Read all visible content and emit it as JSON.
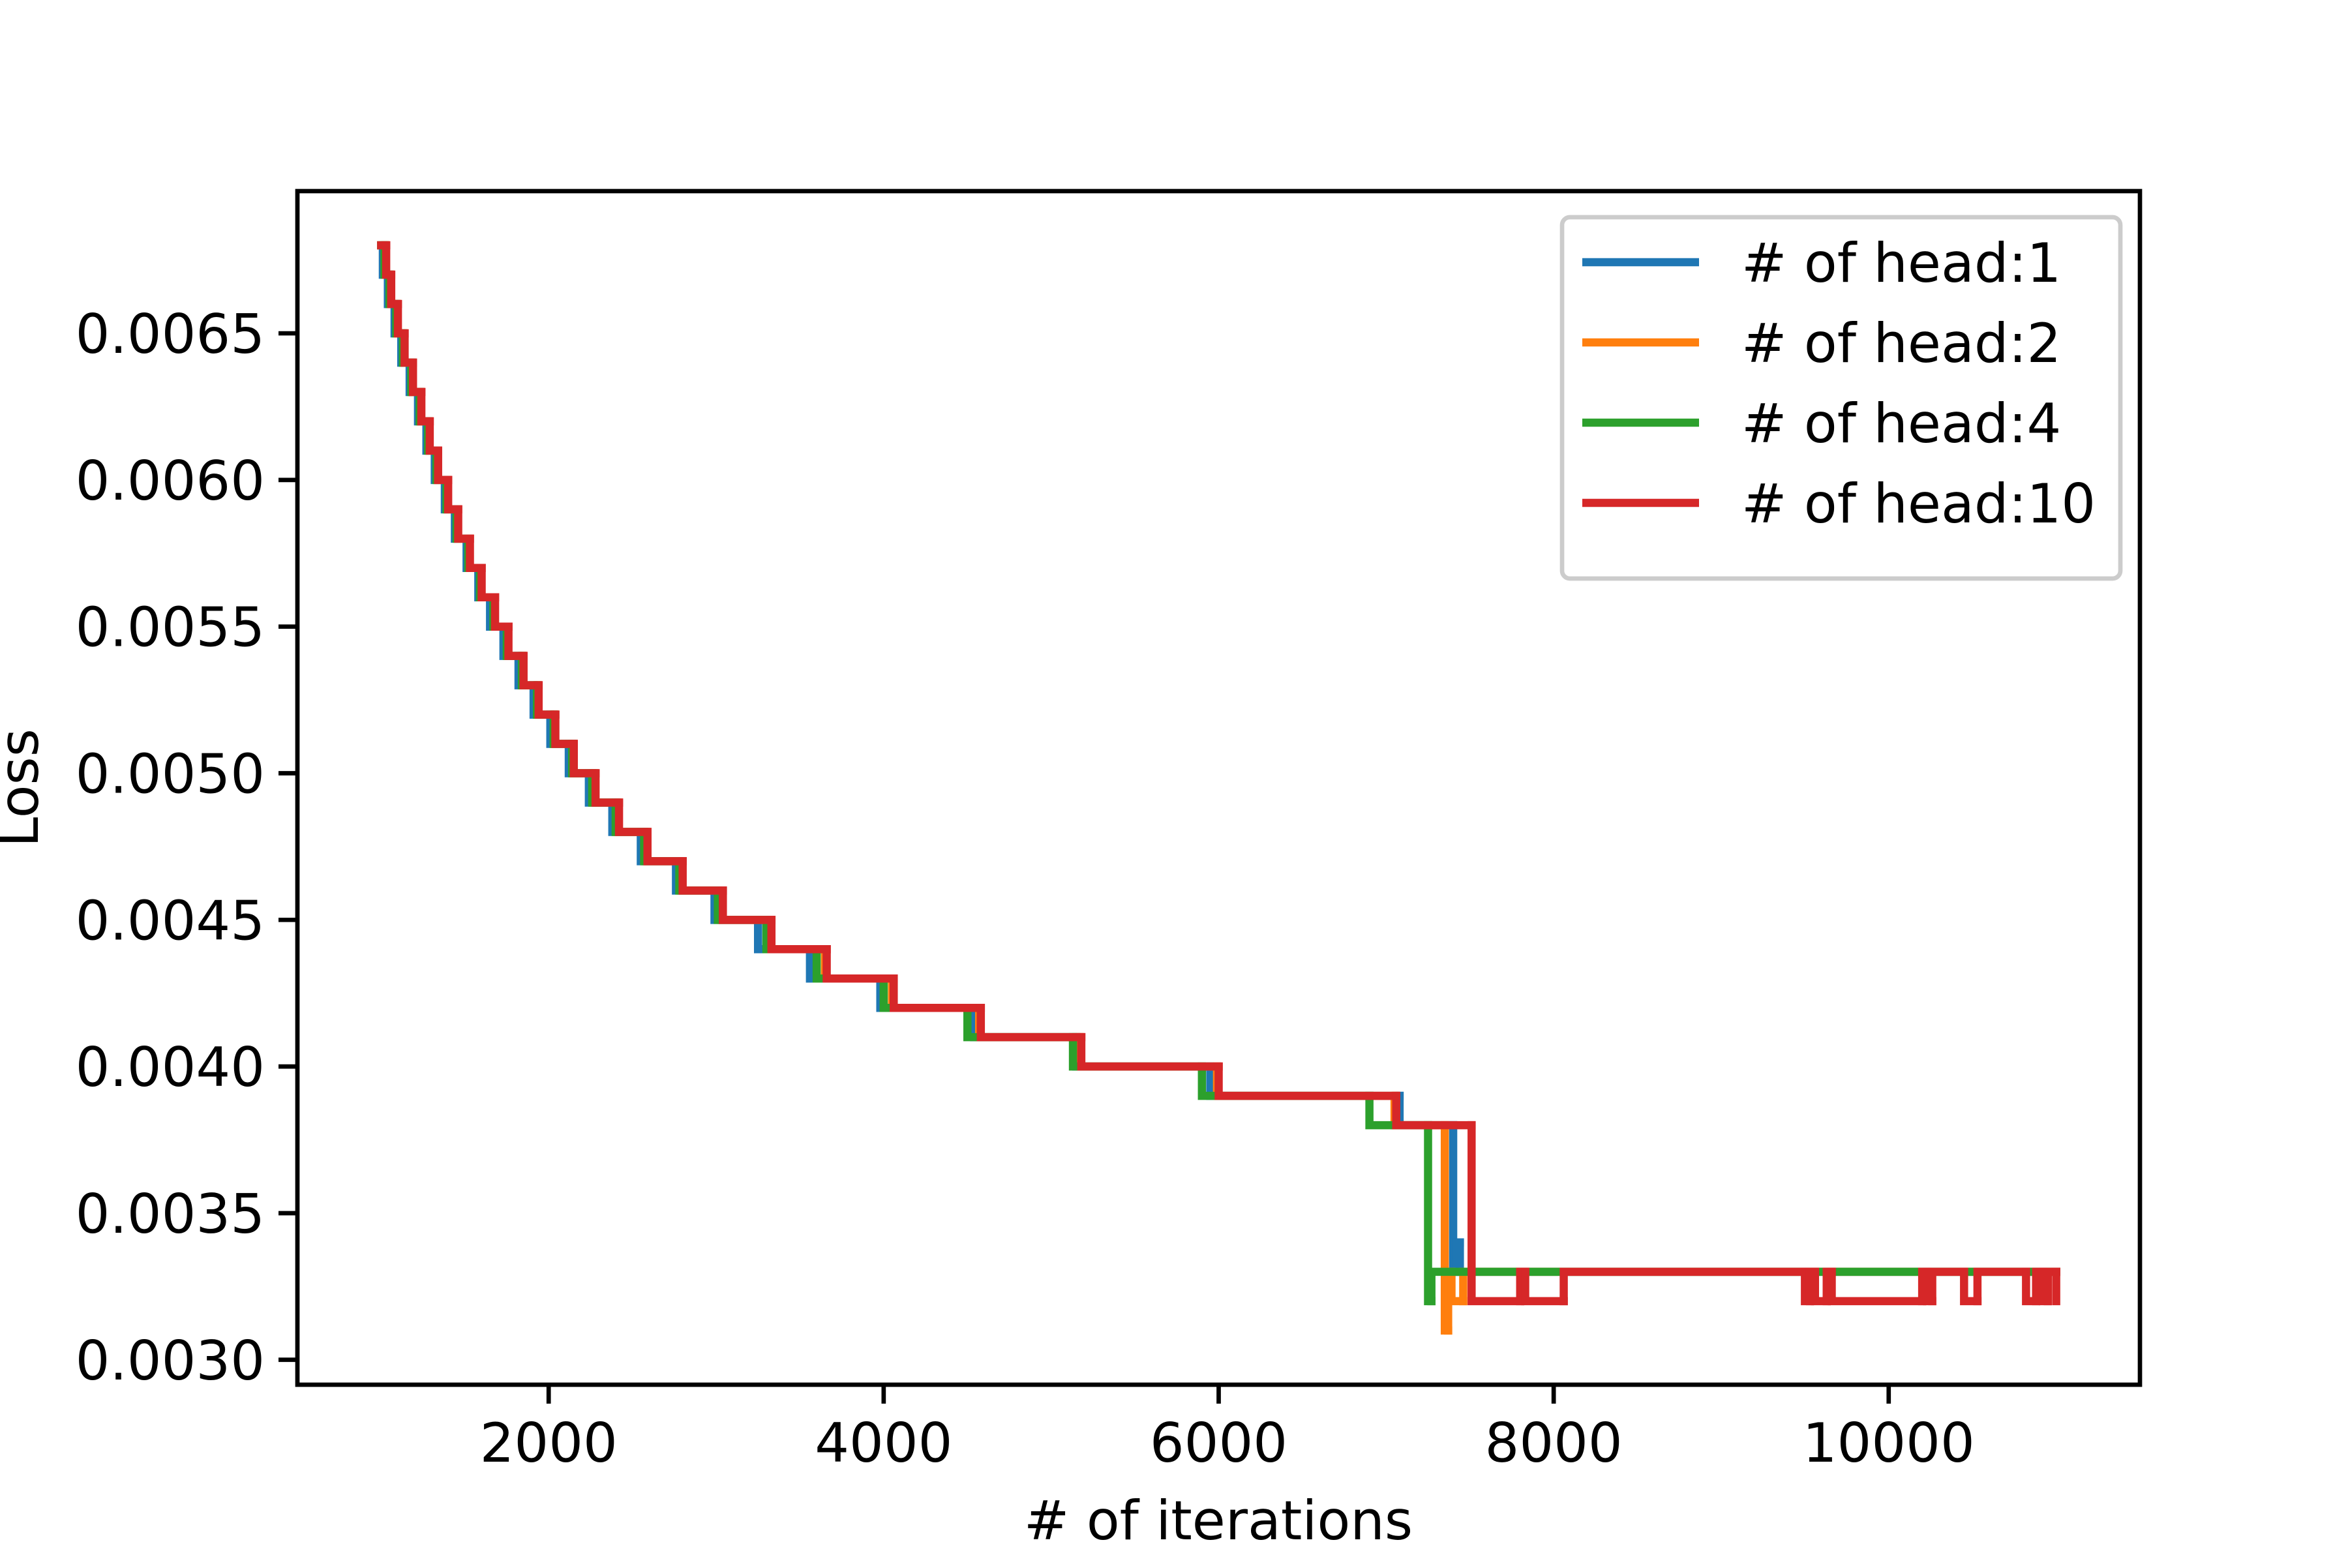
{
  "chart_data": {
    "type": "step",
    "xlabel": "# of iterations",
    "ylabel": "Loss",
    "xlim": [
      500,
      11500
    ],
    "ylim": [
      0.002915,
      0.006985
    ],
    "xticks": [
      2000,
      4000,
      6000,
      8000,
      10000
    ],
    "yticks": [
      {
        "value": 0.003,
        "label": "0.0030"
      },
      {
        "value": 0.0035,
        "label": "0.0035"
      },
      {
        "value": 0.004,
        "label": "0.0040"
      },
      {
        "value": 0.0045,
        "label": "0.0045"
      },
      {
        "value": 0.005,
        "label": "0.0050"
      },
      {
        "value": 0.0055,
        "label": "0.0055"
      },
      {
        "value": 0.006,
        "label": "0.0060"
      },
      {
        "value": 0.0065,
        "label": "0.0065"
      }
    ],
    "grid": false,
    "legend": "upper right",
    "series": [
      {
        "name": "# of head:1",
        "color": "#1f77b4",
        "x": [
          1000,
          1010,
          1040,
          1080,
          1120,
          1170,
          1220,
          1270,
          1320,
          1380,
          1440,
          1510,
          1580,
          1650,
          1730,
          1820,
          1910,
          2010,
          2120,
          2240,
          2380,
          2550,
          2760,
          2990,
          3250,
          3560,
          3980,
          4540,
          5150,
          5950,
          7080,
          7400,
          7420,
          7440,
          11000
        ],
        "values": [
          0.0068,
          0.0067,
          0.0066,
          0.0065,
          0.0064,
          0.0063,
          0.0062,
          0.0061,
          0.006,
          0.0059,
          0.0058,
          0.0057,
          0.0056,
          0.0055,
          0.0054,
          0.0053,
          0.0052,
          0.0051,
          0.005,
          0.0049,
          0.0048,
          0.0047,
          0.0046,
          0.0045,
          0.0044,
          0.0043,
          0.0042,
          0.0041,
          0.004,
          0.0039,
          0.0038,
          0.0033,
          0.0034,
          0.0033,
          0.0033
        ]
      },
      {
        "name": "# of head:2",
        "color": "#ff7f0e",
        "x": [
          1000,
          1025,
          1055,
          1095,
          1135,
          1185,
          1235,
          1285,
          1335,
          1395,
          1455,
          1525,
          1595,
          1675,
          1755,
          1845,
          1935,
          2035,
          2145,
          2270,
          2410,
          2580,
          2790,
          3030,
          3320,
          3650,
          4050,
          4570,
          5170,
          5990,
          7050,
          7350,
          7370,
          7390,
          7460,
          11000
        ],
        "values": [
          0.0068,
          0.0067,
          0.0066,
          0.0065,
          0.0064,
          0.0063,
          0.0062,
          0.0061,
          0.006,
          0.0059,
          0.0058,
          0.0057,
          0.0056,
          0.0055,
          0.0054,
          0.0053,
          0.0052,
          0.0051,
          0.005,
          0.0049,
          0.0048,
          0.0047,
          0.0046,
          0.0045,
          0.0044,
          0.0043,
          0.0042,
          0.0041,
          0.004,
          0.0039,
          0.0038,
          0.0031,
          0.0033,
          0.0032,
          0.0033,
          0.0033
        ]
      },
      {
        "name": "# of head:4",
        "color": "#2ca02c",
        "x": [
          1000,
          1020,
          1050,
          1090,
          1130,
          1180,
          1230,
          1280,
          1330,
          1390,
          1450,
          1520,
          1590,
          1670,
          1750,
          1840,
          1930,
          2030,
          2140,
          2260,
          2400,
          2570,
          2780,
          3010,
          3300,
          3600,
          4000,
          4500,
          5130,
          5900,
          6900,
          7250,
          7270,
          11000
        ],
        "values": [
          0.0068,
          0.0067,
          0.0066,
          0.0065,
          0.0064,
          0.0063,
          0.0062,
          0.0061,
          0.006,
          0.0059,
          0.0058,
          0.0057,
          0.0056,
          0.0055,
          0.0054,
          0.0053,
          0.0052,
          0.0051,
          0.005,
          0.0049,
          0.0048,
          0.0047,
          0.0046,
          0.0045,
          0.0044,
          0.0043,
          0.0042,
          0.0041,
          0.004,
          0.0039,
          0.0038,
          0.0032,
          0.0033,
          0.0033
        ]
      },
      {
        "name": "# of head:10",
        "color": "#d62728",
        "x": [
          1000,
          1030,
          1060,
          1100,
          1140,
          1190,
          1240,
          1290,
          1340,
          1400,
          1460,
          1530,
          1600,
          1680,
          1760,
          1850,
          1940,
          2040,
          2150,
          2280,
          2420,
          2590,
          2800,
          3040,
          3330,
          3660,
          4060,
          4580,
          5180,
          6000,
          7060,
          7510,
          7800,
          7830,
          8060,
          9500,
          9530,
          9560,
          9630,
          9660,
          10200,
          10230,
          10260,
          10450,
          10530,
          10820,
          10880,
          10920,
          10950,
          11000
        ],
        "values": [
          0.0068,
          0.0067,
          0.0066,
          0.0065,
          0.0064,
          0.0063,
          0.0062,
          0.0061,
          0.006,
          0.0059,
          0.0058,
          0.0057,
          0.0056,
          0.0055,
          0.0054,
          0.0053,
          0.0052,
          0.0051,
          0.005,
          0.0049,
          0.0048,
          0.0047,
          0.0046,
          0.0045,
          0.0044,
          0.0043,
          0.0042,
          0.0041,
          0.004,
          0.0039,
          0.0038,
          0.0032,
          0.0033,
          0.0032,
          0.0033,
          0.0032,
          0.0033,
          0.0032,
          0.0033,
          0.0032,
          0.0033,
          0.0032,
          0.0033,
          0.0032,
          0.0033,
          0.0032,
          0.0033,
          0.0032,
          0.0033,
          0.0032
        ]
      }
    ]
  }
}
